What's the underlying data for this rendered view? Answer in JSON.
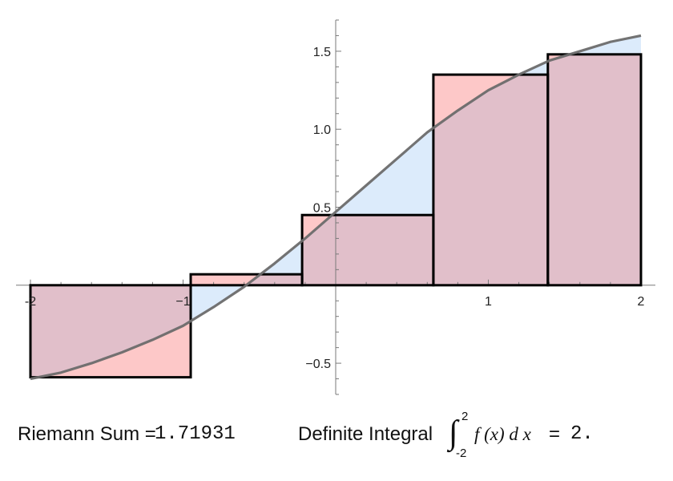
{
  "chart_data": {
    "type": "area",
    "xlim": [
      -2,
      2
    ],
    "ylim": [
      -0.7,
      1.7
    ],
    "x_ticks": [
      -2,
      -1,
      1,
      2
    ],
    "x_tick_labels": [
      "-2",
      "−1",
      "1",
      "2"
    ],
    "y_ticks": [
      -0.5,
      0.5,
      1.0,
      1.5
    ],
    "y_tick_labels": [
      "−0.5",
      "0.5",
      "1.0",
      "1.5"
    ],
    "curve": {
      "x": [
        -2.0,
        -1.8,
        -1.6,
        -1.4,
        -1.2,
        -1.0,
        -0.8,
        -0.6,
        -0.4,
        -0.2,
        0.0,
        0.2,
        0.4,
        0.6,
        0.8,
        1.0,
        1.2,
        1.4,
        1.6,
        1.8,
        2.0
      ],
      "y": [
        -0.6,
        -0.56,
        -0.5,
        -0.43,
        -0.35,
        -0.26,
        -0.14,
        -0.01,
        0.14,
        0.3,
        0.47,
        0.64,
        0.81,
        0.98,
        1.12,
        1.25,
        1.35,
        1.44,
        1.5,
        1.56,
        1.6
      ]
    },
    "rectangles": [
      {
        "x0": -2.0,
        "x1": -0.95,
        "height": -0.59
      },
      {
        "x0": -0.95,
        "x1": -0.22,
        "height": 0.07
      },
      {
        "x0": -0.22,
        "x1": 0.64,
        "height": 0.45
      },
      {
        "x0": 0.64,
        "x1": 1.39,
        "height": 1.35
      },
      {
        "x0": 1.39,
        "x1": 2.0,
        "height": 1.48
      }
    ],
    "grid": false,
    "colors": {
      "curve": "#6b6b6b",
      "area_under_curve": "#dcebfb",
      "rectangle_fill": "#e1bfca",
      "rectangle_excess": "#fdc8c8",
      "rectangle_stroke": "#000000"
    }
  },
  "caption": {
    "riemann_label": "Riemann Sum =",
    "riemann_value": "1.71931",
    "integral_label": "Definite Integral",
    "integral_upper": "2",
    "integral_lower": "-2",
    "integrand": "f (x) d x",
    "equals": "=",
    "integral_value": "2."
  }
}
